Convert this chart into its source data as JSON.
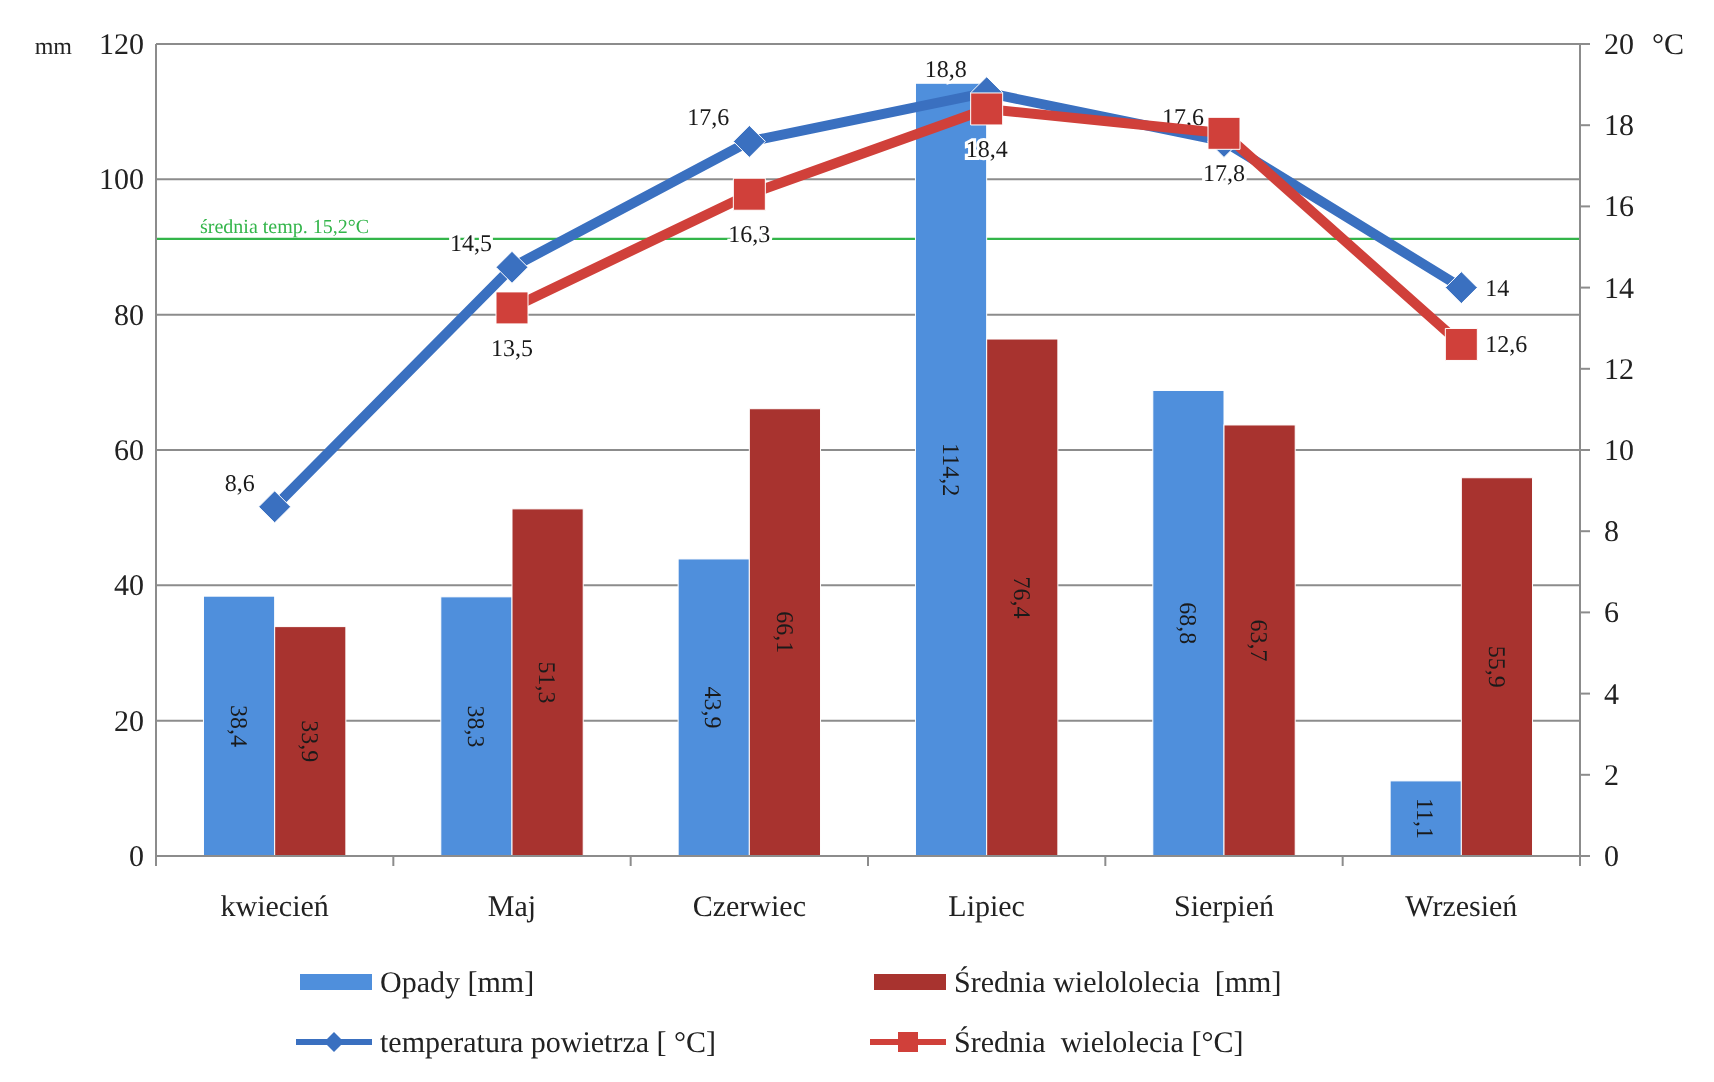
{
  "chart_data": {
    "type": "bar",
    "categories": [
      "kwiecień",
      "Maj",
      "Czerwiec",
      "Lipiec",
      "Sierpień",
      "Wrzesień"
    ],
    "ylabel": "mm",
    "y2label": "°C",
    "ylim": [
      0,
      120
    ],
    "yticks": [
      0,
      20,
      40,
      60,
      80,
      100,
      120
    ],
    "y2lim": [
      0,
      20
    ],
    "y2ticks": [
      0,
      2,
      4,
      6,
      8,
      10,
      12,
      14,
      16,
      18,
      20
    ],
    "grid": "y",
    "legend": "bottom",
    "series": [
      {
        "name": "Opady [mm]",
        "color": "#4f8fdc",
        "values": [
          38.4,
          38.3,
          43.9,
          114.2,
          68.8,
          11.1
        ],
        "value_labels": [
          "38,4",
          "38,3",
          "43,9",
          "114,2",
          "68,8",
          "11,1"
        ]
      },
      {
        "name": "Średnia wielololecia  [mm]",
        "color": "#a8332f",
        "values": [
          33.9,
          51.3,
          66.1,
          76.4,
          63.7,
          55.9
        ],
        "value_labels": [
          "33,9",
          "51,3",
          "66,1",
          "76,4",
          "63,7",
          "55,9"
        ]
      },
      {
        "name": "temperatura powietrza [ °C]",
        "type": "line",
        "axis": "y2",
        "marker": "diamond",
        "color": "#3a70c0",
        "values": [
          8.6,
          14.5,
          17.6,
          18.8,
          17.6,
          14
        ],
        "value_labels": [
          "8,6",
          "14,5",
          "17,6",
          "18,8",
          "17,6",
          "14"
        ]
      },
      {
        "name": "Średnia  wielolecia [°C]",
        "type": "line",
        "axis": "y2",
        "marker": "square",
        "color": "#d0403a",
        "values": [
          null,
          13.5,
          16.3,
          18.4,
          17.8,
          12.6
        ],
        "value_labels": [
          null,
          "13,5",
          "16,3",
          "18,4",
          "17,8",
          "12,6"
        ]
      }
    ],
    "ref_lines": [
      {
        "axis": "y2",
        "value": 15.2,
        "label": "średnia temp. 15,2°C",
        "color": "#33b54a"
      }
    ]
  }
}
